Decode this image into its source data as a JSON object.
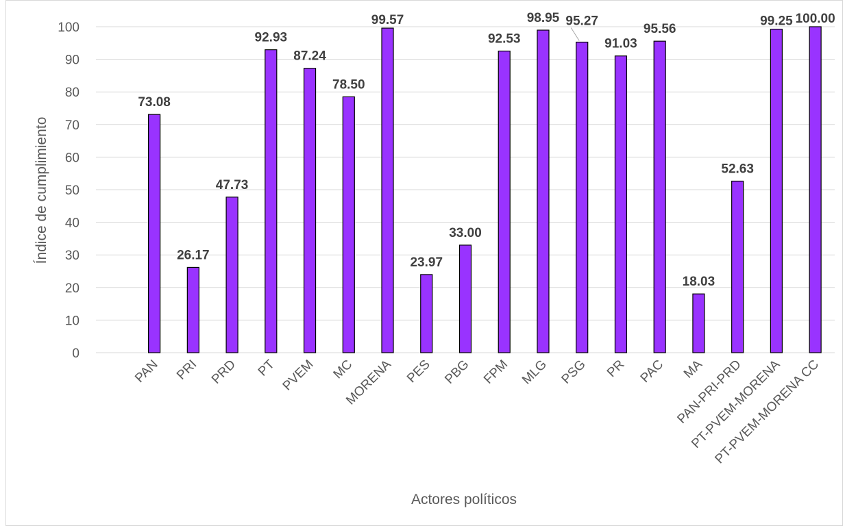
{
  "chart_data": {
    "type": "bar",
    "title": "",
    "xlabel": "Actores políticos",
    "ylabel": "Índice de cumplimiento",
    "ylim": [
      0,
      100
    ],
    "yticks": [
      0,
      10,
      20,
      30,
      40,
      50,
      60,
      70,
      80,
      90,
      100
    ],
    "grid": true,
    "legend": "none",
    "categories": [
      "",
      "PAN",
      "PRI",
      "PRD",
      "PT",
      "PVEM",
      "MC",
      "MORENA",
      "PES",
      "PBG",
      "FPM",
      "MLG",
      "PSG",
      "PR",
      "PAC",
      "MA",
      "PAN-PRI-PRD",
      "PT-PVEM-MORENA",
      "PT-PVEM-MORENA CC"
    ],
    "values": [
      null,
      73.08,
      26.17,
      47.73,
      92.93,
      87.24,
      78.5,
      99.57,
      23.97,
      33.0,
      92.53,
      98.95,
      95.27,
      91.03,
      95.56,
      18.03,
      52.63,
      99.25,
      100.0
    ],
    "data_labels": [
      "",
      "73.08",
      "26.17",
      "47.73",
      "92.93",
      "87.24",
      "78.50",
      "99.57",
      "23.97",
      "33.00",
      "92.53",
      "98.95",
      "95.27",
      "91.03",
      "95.56",
      "18.03",
      "52.63",
      "99.25",
      "100.00"
    ],
    "colors": {
      "bar": "#9933ff",
      "bar_border": "#000000",
      "grid": "#d9d9d9",
      "text": "#595959",
      "label": "#404040"
    }
  }
}
